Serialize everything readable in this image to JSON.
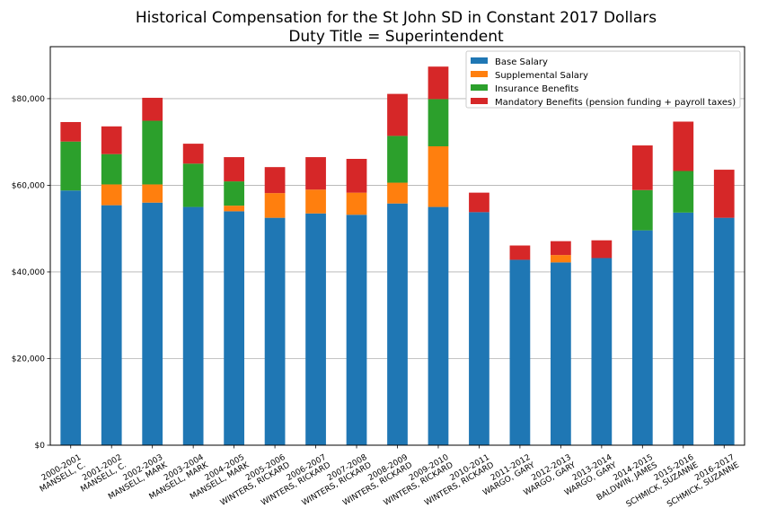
{
  "chart_data": {
    "type": "bar",
    "stacked": true,
    "title": [
      "Historical Compensation for the St John SD in Constant 2017 Dollars",
      "Duty Title = Superintendent"
    ],
    "xlabel": "",
    "ylabel": "",
    "ylim": [
      0,
      92000
    ],
    "yticks": [
      0,
      20000,
      40000,
      60000,
      80000
    ],
    "ytick_labels": [
      "$0",
      "$20,000",
      "$40,000",
      "$60,000",
      "$80,000"
    ],
    "grid": "horizontal",
    "legend_position": "top-right",
    "categories": [
      [
        "2000-2001",
        "MANSELL, C."
      ],
      [
        "2001-2002",
        "MANSELL, C."
      ],
      [
        "2002-2003",
        "MANSELL, MARK"
      ],
      [
        "2003-2004",
        "MANSELL, MARK"
      ],
      [
        "2004-2005",
        "MANSELL, MARK"
      ],
      [
        "2005-2006",
        "WINTERS, RICKARD"
      ],
      [
        "2006-2007",
        "WINTERS, RICKARD"
      ],
      [
        "2007-2008",
        "WINTERS, RICKARD"
      ],
      [
        "2008-2009",
        "WINTERS, RICKARD"
      ],
      [
        "2009-2010",
        "WINTERS, RICKARD"
      ],
      [
        "2010-2011",
        "WINTERS, RICKARD"
      ],
      [
        "2011-2012",
        "WARGO, GARY"
      ],
      [
        "2012-2013",
        "WARGO, GARY"
      ],
      [
        "2013-2014",
        "WARGO, GARY"
      ],
      [
        "2014-2015",
        "BALDWIN, JAMES"
      ],
      [
        "2015-2016",
        "SCHMICK, SUZANNE"
      ],
      [
        "2016-2017",
        "SCHMICK, SUZANNE"
      ]
    ],
    "series": [
      {
        "name": "Base Salary",
        "color": "#1f77b4",
        "values": [
          58800,
          55400,
          56000,
          55000,
          54000,
          52500,
          53500,
          53200,
          55800,
          55000,
          53800,
          42800,
          42200,
          43200,
          49600,
          53700,
          52500
        ]
      },
      {
        "name": "Supplemental Salary",
        "color": "#ff7f0e",
        "values": [
          0,
          4800,
          4200,
          0,
          1300,
          5700,
          5500,
          5100,
          4800,
          14000,
          0,
          0,
          1700,
          0,
          0,
          0,
          0
        ]
      },
      {
        "name": "Insurance Benefits",
        "color": "#2ca02c",
        "values": [
          11300,
          7000,
          14700,
          10000,
          5600,
          0,
          0,
          0,
          10800,
          10900,
          0,
          0,
          0,
          0,
          9300,
          9600,
          0
        ]
      },
      {
        "name": "Mandatory Benefits (pension funding + payroll taxes)",
        "color": "#d62728",
        "values": [
          4500,
          6400,
          5300,
          4600,
          5600,
          6000,
          7500,
          7800,
          9700,
          7500,
          4500,
          3300,
          3200,
          4100,
          10300,
          11400,
          11100
        ]
      }
    ]
  }
}
